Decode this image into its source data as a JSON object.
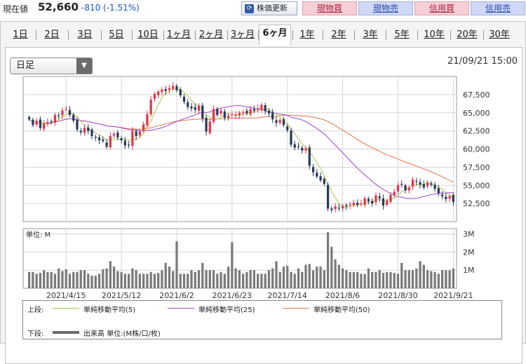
{
  "header": {
    "price_label": "現在値",
    "price": "52,660",
    "change": "-810 (-1.51%)",
    "refresh_label": "株価更新",
    "buttons": [
      {
        "label": "現物買",
        "kind": "buy"
      },
      {
        "label": "現物売",
        "kind": "sell"
      },
      {
        "label": "信用買",
        "kind": "buy"
      },
      {
        "label": "信用売",
        "kind": "sell"
      }
    ]
  },
  "periods": [
    "1日",
    "2日",
    "3日",
    "5日",
    "10日",
    "1ヶ月",
    "2ヶ月",
    "3ヶ月",
    "6ヶ月",
    "1年",
    "2年",
    "3年",
    "5年",
    "10年",
    "20年",
    "30年"
  ],
  "active_period": "6ヶ月",
  "selector": {
    "value": "日足"
  },
  "datetime": "21/09/21 15:00",
  "colors": {
    "up": "#e8334a",
    "down": "#2a3a5c",
    "ma5": "#a8c94a",
    "ma25": "#a144d6",
    "ma50": "#e8734a",
    "volume": "#7a7a7a"
  },
  "chart_data": [
    {
      "type": "candlestick",
      "title": "",
      "x": [
        "2021/4/1",
        "2021/4/2",
        "2021/4/5",
        "2021/4/6",
        "2021/4/7",
        "2021/4/8",
        "2021/4/9",
        "2021/4/12",
        "2021/4/13",
        "2021/4/14",
        "2021/4/15",
        "2021/4/16",
        "2021/4/19",
        "2021/4/20",
        "2021/4/21",
        "2021/4/22",
        "2021/4/23",
        "2021/4/26",
        "2021/4/27",
        "2021/4/28",
        "2021/4/30",
        "2021/5/6",
        "2021/5/7",
        "2021/5/10",
        "2021/5/11",
        "2021/5/12",
        "2021/5/13",
        "2021/5/14",
        "2021/5/17",
        "2021/5/18",
        "2021/5/19",
        "2021/5/20",
        "2021/5/21",
        "2021/5/24",
        "2021/5/25",
        "2021/5/26",
        "2021/5/27",
        "2021/5/28",
        "2021/5/31",
        "2021/6/1",
        "2021/6/2",
        "2021/6/3",
        "2021/6/4",
        "2021/6/7",
        "2021/6/8",
        "2021/6/9",
        "2021/6/10",
        "2021/6/11",
        "2021/6/14",
        "2021/6/15",
        "2021/6/16",
        "2021/6/17",
        "2021/6/18",
        "2021/6/21",
        "2021/6/22",
        "2021/6/23",
        "2021/6/24",
        "2021/6/25",
        "2021/6/28",
        "2021/6/29",
        "2021/6/30",
        "2021/7/1",
        "2021/7/2",
        "2021/7/5",
        "2021/7/6",
        "2021/7/7",
        "2021/7/8",
        "2021/7/9",
        "2021/7/12",
        "2021/7/13",
        "2021/7/14",
        "2021/7/15",
        "2021/7/16",
        "2021/7/19",
        "2021/7/20",
        "2021/7/21",
        "2021/7/26",
        "2021/7/27",
        "2021/7/28",
        "2021/7/29",
        "2021/7/30",
        "2021/8/2",
        "2021/8/3",
        "2021/8/4",
        "2021/8/5",
        "2021/8/6",
        "2021/8/10",
        "2021/8/11",
        "2021/8/12",
        "2021/8/13",
        "2021/8/16",
        "2021/8/17",
        "2021/8/18",
        "2021/8/19",
        "2021/8/20",
        "2021/8/23",
        "2021/8/24",
        "2021/8/25",
        "2021/8/26",
        "2021/8/27",
        "2021/8/30",
        "2021/8/31",
        "2021/9/1",
        "2021/9/2",
        "2021/9/3",
        "2021/9/6",
        "2021/9/7",
        "2021/9/8",
        "2021/9/9",
        "2021/9/10",
        "2021/9/13",
        "2021/9/14",
        "2021/9/15",
        "2021/9/16",
        "2021/9/17",
        "2021/9/21"
      ],
      "x_tick_labels": [
        "2021/4/15",
        "2021/5/12",
        "2021/6/2",
        "2021/6/23",
        "2021/7/14",
        "2021/8/6",
        "2021/8/30",
        "2021/9/21"
      ],
      "close": [
        64100,
        63300,
        63900,
        62900,
        63500,
        63700,
        63800,
        64700,
        64600,
        65300,
        65500,
        64700,
        63900,
        62700,
        62300,
        62900,
        62500,
        61800,
        61600,
        61200,
        61100,
        60300,
        61800,
        62100,
        61600,
        61200,
        60500,
        60600,
        62500,
        61800,
        62400,
        63400,
        64800,
        66800,
        67600,
        67900,
        68200,
        68000,
        68400,
        68700,
        68100,
        67400,
        66500,
        65800,
        65600,
        65400,
        66000,
        64200,
        62400,
        63800,
        65500,
        64700,
        65300,
        64300,
        64600,
        64800,
        64700,
        65000,
        65100,
        64900,
        65500,
        65300,
        65600,
        66100,
        65200,
        64900,
        64100,
        63600,
        64000,
        63300,
        62600,
        60600,
        60200,
        60300,
        59800,
        60100,
        57700,
        56800,
        56200,
        55700,
        55200,
        51800,
        51600,
        52100,
        51900,
        52200,
        52100,
        52400,
        52600,
        52300,
        52500,
        53200,
        52800,
        52500,
        53600,
        53200,
        52200,
        52900,
        53700,
        54100,
        55000,
        55100,
        54300,
        54700,
        55800,
        55500,
        55100,
        54700,
        55400,
        55100,
        54500,
        53900,
        53500,
        53100,
        53500,
        52700
      ],
      "volume_M": [
        0.9,
        0.9,
        0.8,
        0.85,
        1.0,
        0.9,
        0.9,
        0.8,
        1.1,
        0.95,
        1.05,
        0.8,
        0.9,
        0.9,
        1.0,
        1.0,
        0.8,
        0.7,
        0.7,
        0.8,
        1.05,
        1.1,
        1.5,
        1.2,
        0.95,
        0.9,
        0.8,
        0.8,
        1.1,
        1.0,
        0.8,
        0.8,
        0.8,
        0.9,
        0.8,
        0.85,
        1.0,
        1.4,
        1.2,
        0.95,
        2.6,
        0.8,
        0.8,
        0.8,
        1.0,
        0.9,
        1.0,
        1.4,
        1.0,
        1.0,
        1.0,
        0.8,
        0.9,
        0.8,
        1.2,
        2.55,
        1.1,
        1.0,
        0.8,
        0.9,
        1.0,
        1.0,
        0.8,
        0.8,
        0.8,
        1.0,
        1.1,
        1.5,
        0.9,
        1.2,
        1.25,
        0.9,
        0.8,
        1.1,
        0.9,
        1.3,
        1.35,
        1.0,
        1.2,
        1.2,
        1.0,
        3.1,
        2.3,
        1.6,
        1.3,
        1.1,
        1.0,
        0.9,
        0.9,
        0.9,
        0.8,
        0.8,
        1.1,
        0.9,
        0.9,
        1.0,
        0.85,
        0.9,
        0.9,
        0.85,
        0.8,
        1.4,
        1.0,
        1.0,
        1.0,
        1.1,
        1.5,
        1.3,
        1.0,
        0.95,
        0.9,
        0.8,
        1.0,
        1.0,
        1.0,
        1.1
      ],
      "y_ticks": [
        52500,
        55000,
        57500,
        60000,
        62500,
        65000,
        67500
      ],
      "y_tick_labels": [
        "52,500",
        "55,000",
        "57,500",
        "60,000",
        "62,500",
        "65,000",
        "67,500"
      ],
      "ylim": [
        50000,
        70000
      ],
      "volume_ticks": [
        1,
        2,
        3
      ],
      "volume_tick_labels": [
        "1M",
        "2M",
        "3M"
      ],
      "volume_unit_label": "単位: M",
      "moving_averages": [
        5,
        25,
        50
      ]
    }
  ],
  "legend": {
    "upper_label": "上段:",
    "lower_label": "下段:",
    "ma5": "単純移動平均(5)",
    "ma25": "単純移動平均(25)",
    "ma50": "単純移動平均(50)",
    "volume": "出来高 単位:(M株/口/枚)"
  }
}
